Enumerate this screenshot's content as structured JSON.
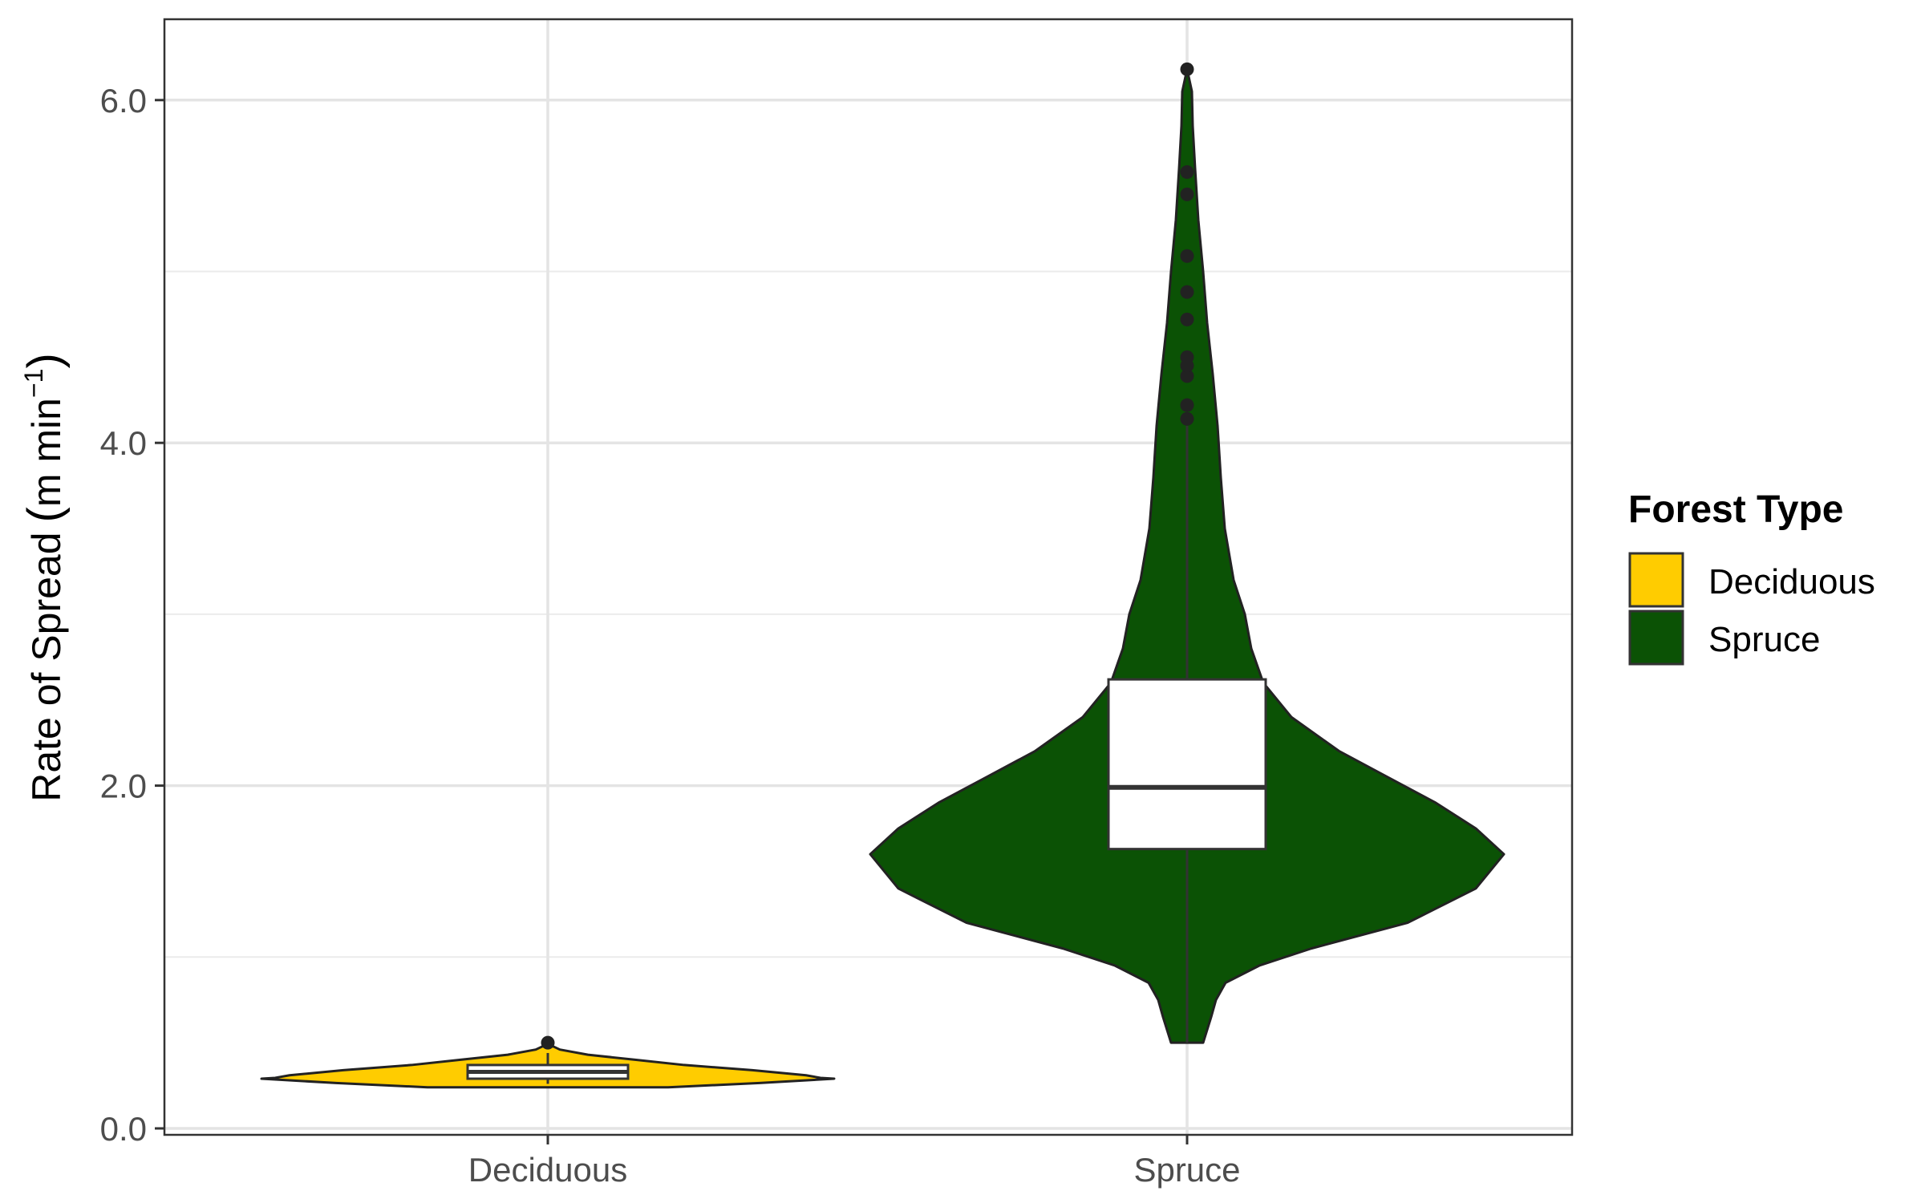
{
  "chart_data": {
    "type": "violin",
    "title": "",
    "xlabel": "",
    "ylabel": "Rate of Spread",
    "ylabel_unit": "m min",
    "ylabel_unit_exponent": "−1",
    "ylim": [
      -0.05,
      6.5
    ],
    "yticks": [
      0.0,
      2.0,
      4.0,
      6.0
    ],
    "ytick_labels": [
      "0.0",
      "2.0",
      "4.0",
      "6.0"
    ],
    "grid": true,
    "categories": [
      "Deciduous",
      "Spruce"
    ],
    "legend": {
      "title": "Forest Type",
      "position": "right",
      "entries": [
        "Deciduous",
        "Spruce"
      ]
    },
    "series": [
      {
        "name": "Deciduous",
        "color": "#FFCC00",
        "violin_range": [
          0.24,
          0.5
        ],
        "box": {
          "lower_whisker": 0.26,
          "q1": 0.29,
          "median": 0.33,
          "q3": 0.37,
          "upper_whisker": 0.44
        },
        "outliers": [
          0.5
        ]
      },
      {
        "name": "Spruce",
        "color": "#0B5205",
        "violin_range": [
          0.5,
          6.18
        ],
        "box": {
          "lower_whisker": 0.5,
          "q1": 1.63,
          "median": 1.99,
          "q3": 2.62,
          "upper_whisker": 4.1
        },
        "outliers": [
          4.14,
          4.22,
          4.39,
          4.45,
          4.5,
          4.72,
          4.88,
          5.09,
          5.45,
          5.58,
          6.18
        ]
      }
    ]
  }
}
